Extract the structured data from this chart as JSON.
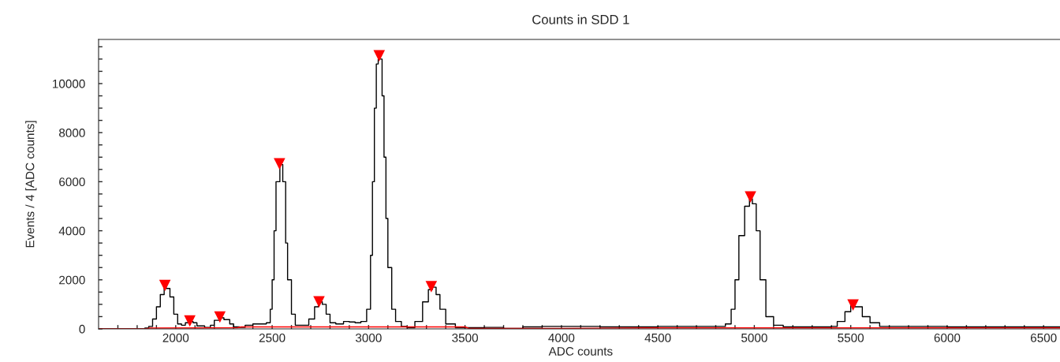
{
  "chart_data": {
    "type": "step",
    "title": "Counts in SDD 1",
    "xlabel": "ADC counts",
    "ylabel": "Events / 4 [ADC counts]",
    "xlim": [
      1600,
      6600
    ],
    "ylim": [
      0,
      11800
    ],
    "xticks": [
      {
        "value": 1700,
        "label": null
      },
      {
        "value": 1800,
        "label": null
      },
      {
        "value": 1900,
        "label": null
      },
      2000,
      {
        "value": 2100,
        "label": null
      },
      {
        "value": 2200,
        "label": null
      },
      {
        "value": 2300,
        "label": null
      },
      {
        "value": 2400,
        "label": null
      },
      2500,
      {
        "value": 2600,
        "label": null
      },
      {
        "value": 2700,
        "label": null
      },
      {
        "value": 2800,
        "label": null
      },
      {
        "value": 2900,
        "label": null
      },
      3000,
      {
        "value": 3100,
        "label": null
      },
      {
        "value": 3200,
        "label": null
      },
      {
        "value": 3300,
        "label": null
      },
      {
        "value": 3400,
        "label": null
      },
      3500,
      {
        "value": 3600,
        "label": null
      },
      {
        "value": 3700,
        "label": null
      },
      {
        "value": 3800,
        "label": null
      },
      {
        "value": 3900,
        "label": null
      },
      4000,
      {
        "value": 4100,
        "label": null
      },
      {
        "value": 4200,
        "label": null
      },
      {
        "value": 4300,
        "label": null
      },
      {
        "value": 4400,
        "label": null
      },
      4500,
      {
        "value": 4600,
        "label": null
      },
      {
        "value": 4700,
        "label": null
      },
      {
        "value": 4800,
        "label": null
      },
      {
        "value": 4900,
        "label": null
      },
      5000,
      {
        "value": 5100,
        "label": null
      },
      {
        "value": 5200,
        "label": null
      },
      {
        "value": 5300,
        "label": null
      },
      {
        "value": 5400,
        "label": null
      },
      5500,
      {
        "value": 5600,
        "label": null
      },
      {
        "value": 5700,
        "label": null
      },
      {
        "value": 5800,
        "label": null
      },
      {
        "value": 5900,
        "label": null
      },
      6000,
      {
        "value": 6100,
        "label": null
      },
      {
        "value": 6200,
        "label": null
      },
      {
        "value": 6300,
        "label": null
      },
      {
        "value": 6400,
        "label": null
      },
      6500
    ],
    "yticks": [
      0,
      {
        "value": 500,
        "label": null
      },
      {
        "value": 1000,
        "label": null
      },
      {
        "value": 1500,
        "label": null
      },
      2000,
      {
        "value": 2500,
        "label": null
      },
      {
        "value": 3000,
        "label": null
      },
      {
        "value": 3500,
        "label": null
      },
      4000,
      {
        "value": 4500,
        "label": null
      },
      {
        "value": 5000,
        "label": null
      },
      {
        "value": 5500,
        "label": null
      },
      6000,
      {
        "value": 6500,
        "label": null
      },
      {
        "value": 7000,
        "label": null
      },
      {
        "value": 7500,
        "label": null
      },
      8000,
      {
        "value": 8500,
        "label": null
      },
      {
        "value": 9000,
        "label": null
      },
      {
        "value": 9500,
        "label": null
      },
      10000,
      {
        "value": 10500,
        "label": null
      },
      {
        "value": 11000,
        "label": null
      },
      {
        "value": 11500,
        "label": null
      }
    ],
    "series": [
      {
        "color": "#000000",
        "x": [
          1600,
          1800,
          1840,
          1860,
          1880,
          1900,
          1920,
          1940,
          1950,
          1970,
          1990,
          2010,
          2030,
          2050,
          2070,
          2090,
          2110,
          2150,
          2180,
          2200,
          2230,
          2250,
          2280,
          2300,
          2330,
          2360,
          2400,
          2440,
          2470,
          2490,
          2500,
          2510,
          2520,
          2540,
          2555,
          2570,
          2580,
          2600,
          2620,
          2650,
          2690,
          2720,
          2740,
          2760,
          2780,
          2800,
          2830,
          2870,
          2900,
          2930,
          2960,
          2990,
          3010,
          3020,
          3030,
          3040,
          3050,
          3060,
          3070,
          3080,
          3090,
          3100,
          3120,
          3140,
          3170,
          3200,
          3240,
          3280,
          3310,
          3330,
          3350,
          3370,
          3400,
          3450,
          3600,
          3700,
          3800,
          3900,
          4000,
          4200,
          4500,
          4800,
          4850,
          4880,
          4900,
          4920,
          4950,
          4975,
          4990,
          5010,
          5030,
          5060,
          5100,
          5150,
          5400,
          5430,
          5470,
          5500,
          5520,
          5560,
          5600,
          5650,
          6000,
          6500,
          6600
        ],
        "values": [
          0,
          0,
          30,
          100,
          400,
          900,
          1400,
          1700,
          1650,
          1300,
          600,
          200,
          150,
          250,
          300,
          250,
          120,
          60,
          150,
          350,
          450,
          380,
          200,
          80,
          60,
          150,
          200,
          200,
          250,
          800,
          2000,
          4000,
          6000,
          6700,
          6000,
          3500,
          2000,
          600,
          150,
          150,
          400,
          900,
          1100,
          1000,
          600,
          250,
          200,
          300,
          280,
          250,
          300,
          800,
          3000,
          6000,
          9000,
          10800,
          11000,
          11000,
          9500,
          7000,
          4500,
          2500,
          800,
          300,
          100,
          50,
          300,
          1100,
          1600,
          1700,
          1400,
          800,
          200,
          50,
          60,
          20,
          80,
          100,
          100,
          80,
          100,
          100,
          200,
          800,
          2000,
          3800,
          5000,
          5300,
          5100,
          4000,
          2000,
          500,
          150,
          80,
          100,
          300,
          700,
          950,
          900,
          500,
          250,
          100,
          80,
          80,
          70
        ]
      },
      {
        "type": "line",
        "color": "#ff0000",
        "x": [
          1600,
          1850,
          1860,
          2320,
          2340,
          3500,
          3520,
          4000,
          4500,
          6600
        ],
        "values": [
          0,
          0,
          30,
          50,
          80,
          80,
          20,
          20,
          40,
          40
        ]
      },
      {
        "type": "scatter",
        "color": "#ff0000",
        "marker": "triangle",
        "x": [
          1944,
          2073,
          2229,
          2538,
          2743,
          3055,
          3325,
          4980,
          5512
        ],
        "values": [
          1770,
          320,
          480,
          6730,
          1100,
          11130,
          1720,
          5380,
          970
        ]
      }
    ]
  }
}
